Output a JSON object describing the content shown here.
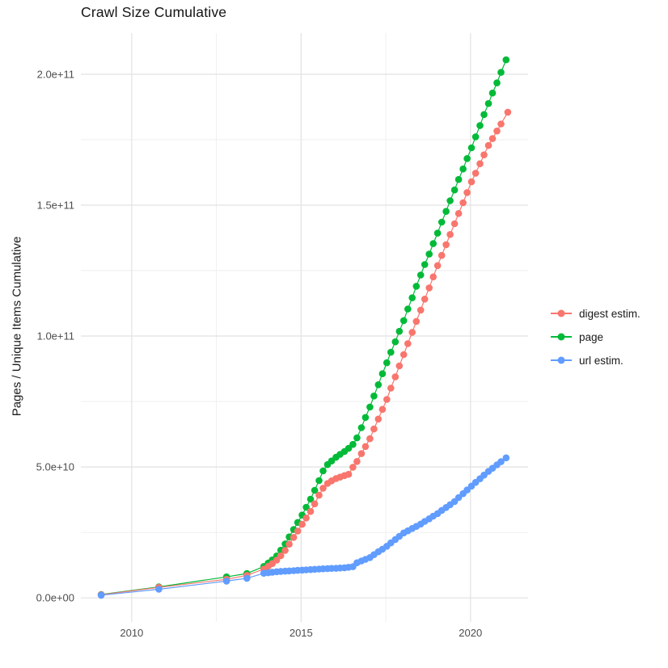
{
  "title": "Crawl Size Cumulative",
  "chart_data": {
    "type": "scatter",
    "title": "Crawl Size Cumulative",
    "xlabel": "",
    "ylabel": "Pages / Unique Items Cumulative",
    "grid": true,
    "background": "#ffffff",
    "grid_major_color": "#e2e2e2",
    "grid_minor_color": "#eeeeee",
    "legend_position": "right",
    "x_axis": {
      "lim": [
        2008.5,
        2021.7
      ],
      "ticks": [
        {
          "label": "2010",
          "value": 2010
        },
        {
          "label": "2015",
          "value": 2015
        },
        {
          "label": "2020",
          "value": 2020
        }
      ],
      "minor": [
        2012.5,
        2017.5
      ]
    },
    "y_axis": {
      "lim": [
        -9200000000.0,
        215700000000.0
      ],
      "ticks": [
        {
          "label": "0.0e+00",
          "value": 0
        },
        {
          "label": "5.0e+10",
          "value": 50000000000.0
        },
        {
          "label": "1.0e+11",
          "value": 100000000000.0
        },
        {
          "label": "1.5e+11",
          "value": 150000000000.0
        },
        {
          "label": "2.0e+11",
          "value": 200000000000.0
        }
      ],
      "minor": [
        25000000000.0,
        75000000000.0,
        125000000000.0,
        175000000000.0
      ]
    },
    "draw_order": [
      1,
      0,
      2
    ],
    "series": [
      {
        "name": "digest estim.",
        "color": "#F8766D",
        "points": [
          [
            2009.1,
            1200000000.0
          ],
          [
            2010.8,
            4000000000.0
          ],
          [
            2012.8,
            7100000000.0
          ],
          [
            2013.4,
            8600000000.0
          ],
          [
            2013.9,
            11000000000.0
          ],
          [
            2014.03,
            12100000000.0
          ],
          [
            2014.15,
            13100000000.0
          ],
          [
            2014.28,
            14400000000.0
          ],
          [
            2014.4,
            16100000000.0
          ],
          [
            2014.53,
            18100000000.0
          ],
          [
            2014.65,
            20500000000.0
          ],
          [
            2014.78,
            23100000000.0
          ],
          [
            2014.9,
            25500000000.0
          ],
          [
            2015.03,
            28100000000.0
          ],
          [
            2015.15,
            30500000000.0
          ],
          [
            2015.28,
            33000000000.0
          ],
          [
            2015.4,
            35900000000.0
          ],
          [
            2015.53,
            39200000000.0
          ],
          [
            2015.65,
            41900000000.0
          ],
          [
            2015.78,
            43700000000.0
          ],
          [
            2015.9,
            44700000000.0
          ],
          [
            2016.03,
            45600000000.0
          ],
          [
            2016.15,
            46100000000.0
          ],
          [
            2016.28,
            46700000000.0
          ],
          [
            2016.4,
            47200000000.0
          ],
          [
            2016.53,
            49900000000.0
          ],
          [
            2016.65,
            52100000000.0
          ],
          [
            2016.78,
            55100000000.0
          ],
          [
            2016.9,
            57800000000.0
          ],
          [
            2017.03,
            60800000000.0
          ],
          [
            2017.15,
            64500000000.0
          ],
          [
            2017.28,
            68300000000.0
          ],
          [
            2017.4,
            72000000000.0
          ],
          [
            2017.53,
            75800000000.0
          ],
          [
            2017.65,
            80100000000.0
          ],
          [
            2017.78,
            84400000000.0
          ],
          [
            2017.9,
            88600000000.0
          ],
          [
            2018.03,
            92900000000.0
          ],
          [
            2018.15,
            97100000000.0
          ],
          [
            2018.28,
            101400000000.0
          ],
          [
            2018.4,
            105600000000.0
          ],
          [
            2018.53,
            109900000000.0
          ],
          [
            2018.65,
            114100000000.0
          ],
          [
            2018.78,
            118400000000.0
          ],
          [
            2018.9,
            122600000000.0
          ],
          [
            2019.03,
            126900000000.0
          ],
          [
            2019.15,
            130800000000.0
          ],
          [
            2019.28,
            134900000000.0
          ],
          [
            2019.4,
            138800000000.0
          ],
          [
            2019.53,
            142900000000.0
          ],
          [
            2019.65,
            146800000000.0
          ],
          [
            2019.78,
            150900000000.0
          ],
          [
            2019.9,
            154800000000.0
          ],
          [
            2020.03,
            158900000000.0
          ],
          [
            2020.15,
            162200000000.0
          ],
          [
            2020.28,
            165800000000.0
          ],
          [
            2020.4,
            169200000000.0
          ],
          [
            2020.53,
            172800000000.0
          ],
          [
            2020.65,
            175400000000.0
          ],
          [
            2020.78,
            178300000000.0
          ],
          [
            2020.9,
            181000000000.0
          ],
          [
            2021.1,
            185500000000.0
          ]
        ]
      },
      {
        "name": "page",
        "color": "#00BA38",
        "points": [
          [
            2009.1,
            1300000000.0
          ],
          [
            2010.8,
            4200000000.0
          ],
          [
            2012.8,
            8000000000.0
          ],
          [
            2013.4,
            9300000000.0
          ],
          [
            2013.9,
            12000000000.0
          ],
          [
            2014.03,
            13300000000.0
          ],
          [
            2014.15,
            14500000000.0
          ],
          [
            2014.28,
            16000000000.0
          ],
          [
            2014.4,
            18200000000.0
          ],
          [
            2014.53,
            20600000000.0
          ],
          [
            2014.65,
            23300000000.0
          ],
          [
            2014.78,
            26100000000.0
          ],
          [
            2014.9,
            28800000000.0
          ],
          [
            2015.03,
            31600000000.0
          ],
          [
            2015.15,
            34600000000.0
          ],
          [
            2015.28,
            37700000000.0
          ],
          [
            2015.4,
            41100000000.0
          ],
          [
            2015.53,
            44800000000.0
          ],
          [
            2015.65,
            48500000000.0
          ],
          [
            2015.78,
            50900000000.0
          ],
          [
            2015.9,
            52300000000.0
          ],
          [
            2016.03,
            53700000000.0
          ],
          [
            2016.15,
            54800000000.0
          ],
          [
            2016.28,
            55900000000.0
          ],
          [
            2016.4,
            57100000000.0
          ],
          [
            2016.53,
            58600000000.0
          ],
          [
            2016.65,
            61100000000.0
          ],
          [
            2016.78,
            65000000000.0
          ],
          [
            2016.9,
            68900000000.0
          ],
          [
            2017.03,
            72900000000.0
          ],
          [
            2017.15,
            77100000000.0
          ],
          [
            2017.28,
            81400000000.0
          ],
          [
            2017.4,
            85600000000.0
          ],
          [
            2017.53,
            89800000000.0
          ],
          [
            2017.65,
            93800000000.0
          ],
          [
            2017.78,
            97800000000.0
          ],
          [
            2017.9,
            101800000000.0
          ],
          [
            2018.03,
            105900000000.0
          ],
          [
            2018.15,
            110300000000.0
          ],
          [
            2018.28,
            114600000000.0
          ],
          [
            2018.4,
            119000000000.0
          ],
          [
            2018.53,
            123300000000.0
          ],
          [
            2018.65,
            127300000000.0
          ],
          [
            2018.78,
            131300000000.0
          ],
          [
            2018.9,
            135300000000.0
          ],
          [
            2019.03,
            139300000000.0
          ],
          [
            2019.15,
            143500000000.0
          ],
          [
            2019.28,
            147600000000.0
          ],
          [
            2019.4,
            151700000000.0
          ],
          [
            2019.53,
            155800000000.0
          ],
          [
            2019.65,
            159800000000.0
          ],
          [
            2019.78,
            163800000000.0
          ],
          [
            2019.9,
            167800000000.0
          ],
          [
            2020.03,
            171900000000.0
          ],
          [
            2020.15,
            176100000000.0
          ],
          [
            2020.28,
            180400000000.0
          ],
          [
            2020.4,
            184600000000.0
          ],
          [
            2020.53,
            188800000000.0
          ],
          [
            2020.65,
            192800000000.0
          ],
          [
            2020.78,
            196700000000.0
          ],
          [
            2020.9,
            200700000000.0
          ],
          [
            2021.05,
            205500000000.0
          ]
        ]
      },
      {
        "name": "url estim.",
        "color": "#619CFF",
        "points": [
          [
            2009.1,
            1000000000.0
          ],
          [
            2010.8,
            3300000000.0
          ],
          [
            2012.8,
            6400000000.0
          ],
          [
            2013.4,
            7500000000.0
          ],
          [
            2013.9,
            9400000000.0
          ],
          [
            2014.03,
            9600000000.0
          ],
          [
            2014.15,
            9800000000.0
          ],
          [
            2014.28,
            10000000000.0
          ],
          [
            2014.4,
            10100000000.0
          ],
          [
            2014.53,
            10200000000.0
          ],
          [
            2014.65,
            10300000000.0
          ],
          [
            2014.78,
            10400000000.0
          ],
          [
            2014.9,
            10500000000.0
          ],
          [
            2015.03,
            10600000000.0
          ],
          [
            2015.15,
            10700000000.0
          ],
          [
            2015.28,
            10800000000.0
          ],
          [
            2015.4,
            10900000000.0
          ],
          [
            2015.53,
            11000000000.0
          ],
          [
            2015.65,
            11100000000.0
          ],
          [
            2015.78,
            11200000000.0
          ],
          [
            2015.9,
            11250000000.0
          ],
          [
            2016.03,
            11300000000.0
          ],
          [
            2016.15,
            11400000000.0
          ],
          [
            2016.28,
            11500000000.0
          ],
          [
            2016.4,
            11700000000.0
          ],
          [
            2016.53,
            11900000000.0
          ],
          [
            2016.65,
            13400000000.0
          ],
          [
            2016.78,
            14100000000.0
          ],
          [
            2016.9,
            14700000000.0
          ],
          [
            2017.03,
            15400000000.0
          ],
          [
            2017.15,
            16500000000.0
          ],
          [
            2017.28,
            17600000000.0
          ],
          [
            2017.4,
            18600000000.0
          ],
          [
            2017.53,
            19700000000.0
          ],
          [
            2017.65,
            21000000000.0
          ],
          [
            2017.78,
            22300000000.0
          ],
          [
            2017.9,
            23500000000.0
          ],
          [
            2018.03,
            24800000000.0
          ],
          [
            2018.15,
            25600000000.0
          ],
          [
            2018.28,
            26500000000.0
          ],
          [
            2018.4,
            27300000000.0
          ],
          [
            2018.53,
            28200000000.0
          ],
          [
            2018.65,
            29200000000.0
          ],
          [
            2018.78,
            30200000000.0
          ],
          [
            2018.9,
            31200000000.0
          ],
          [
            2019.03,
            32200000000.0
          ],
          [
            2019.15,
            33400000000.0
          ],
          [
            2019.28,
            34500000000.0
          ],
          [
            2019.4,
            35600000000.0
          ],
          [
            2019.53,
            36800000000.0
          ],
          [
            2019.65,
            38300000000.0
          ],
          [
            2019.78,
            39800000000.0
          ],
          [
            2019.9,
            41200000000.0
          ],
          [
            2020.03,
            42700000000.0
          ],
          [
            2020.15,
            44100000000.0
          ],
          [
            2020.28,
            45500000000.0
          ],
          [
            2020.4,
            46900000000.0
          ],
          [
            2020.53,
            48300000000.0
          ],
          [
            2020.65,
            49500000000.0
          ],
          [
            2020.78,
            50800000000.0
          ],
          [
            2020.9,
            52000000000.0
          ],
          [
            2021.05,
            53500000000.0
          ]
        ]
      }
    ]
  }
}
